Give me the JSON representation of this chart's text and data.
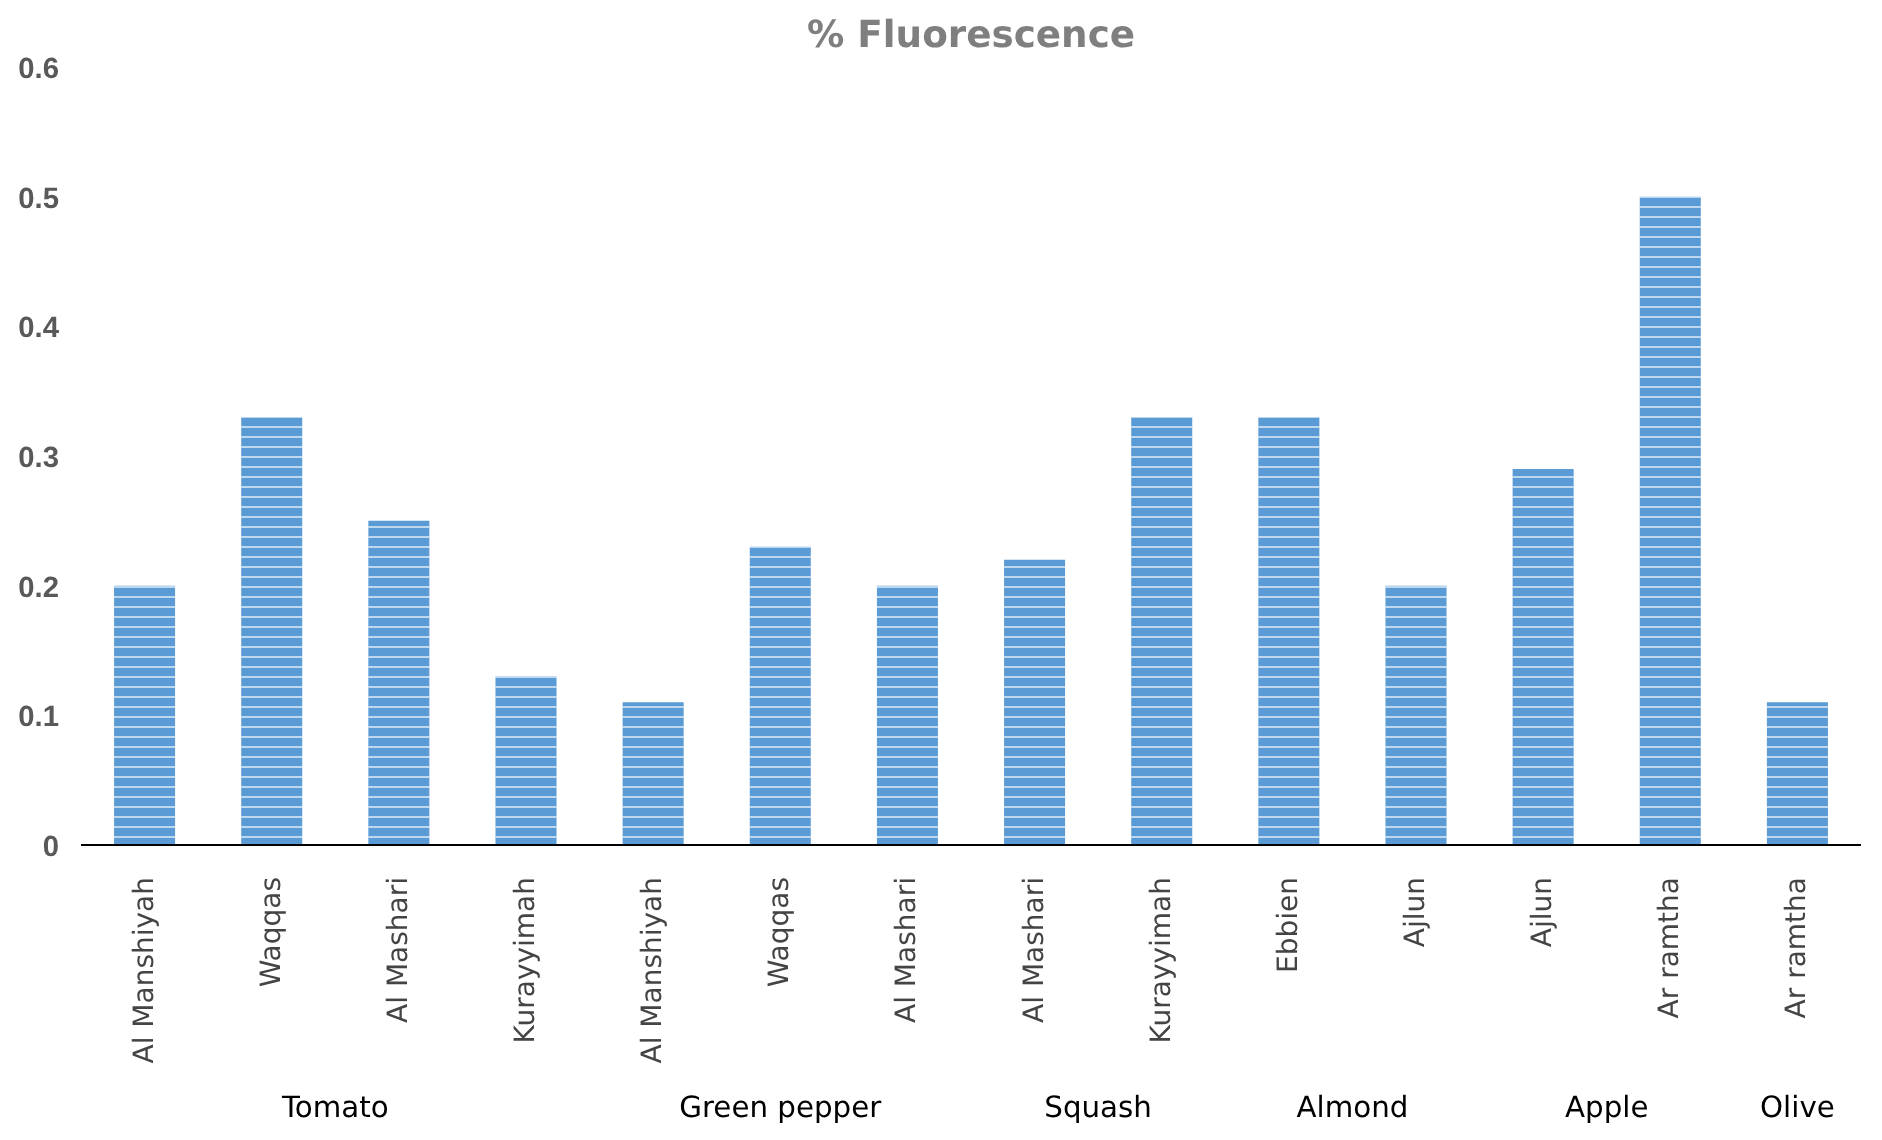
{
  "chart_data": {
    "type": "bar",
    "title": "% Fluorescence",
    "categories": [
      "Al Manshiyah",
      "Waqqas",
      "Al Mashari",
      "Kurayyimah",
      "Al Manshiyah",
      "Waqqas",
      "Al Mashari",
      "Al Mashari",
      "Kurayyimah",
      "Ebbien",
      "Ajlun",
      "Ajlun",
      "Ar ramtha",
      "Ar ramtha"
    ],
    "series": [
      {
        "color": "#5b9bd5",
        "values": [
          0.2,
          0.33,
          0.25,
          0.13,
          null,
          null,
          null,
          null,
          null,
          null,
          null,
          null,
          null,
          null
        ]
      },
      {
        "color": "#5b9bd5",
        "values": [
          null,
          null,
          null,
          null,
          0.11,
          0.23,
          0.2,
          null,
          null,
          null,
          null,
          null,
          null,
          null
        ]
      },
      {
        "color": "#5b9bd5",
        "values": [
          null,
          null,
          null,
          null,
          null,
          null,
          null,
          0.22,
          0.33,
          null,
          null,
          null,
          null,
          null
        ]
      },
      {
        "color": "#5b9bd5",
        "values": [
          null,
          null,
          null,
          null,
          null,
          null,
          null,
          null,
          null,
          0.33,
          0.2,
          null,
          null,
          null
        ]
      },
      {
        "color": "#5b9bd5",
        "values": [
          null,
          null,
          null,
          null,
          null,
          null,
          null,
          null,
          null,
          null,
          null,
          0.29,
          0.5,
          null
        ]
      },
      {
        "color": "#5b9bd5",
        "values": [
          null,
          null,
          null,
          null,
          null,
          null,
          null,
          null,
          null,
          null,
          null,
          null,
          null,
          0.11
        ]
      }
    ],
    "annotations": [
      "Tomato",
      "Green pepper",
      "Squash",
      "Almond",
      "Apple",
      "Olive"
    ],
    "ylim": [
      0,
      0.6
    ],
    "yticks": [
      0,
      0.1,
      0.2,
      0.3,
      0.4,
      0.5,
      0.6
    ],
    "grid": false
  }
}
